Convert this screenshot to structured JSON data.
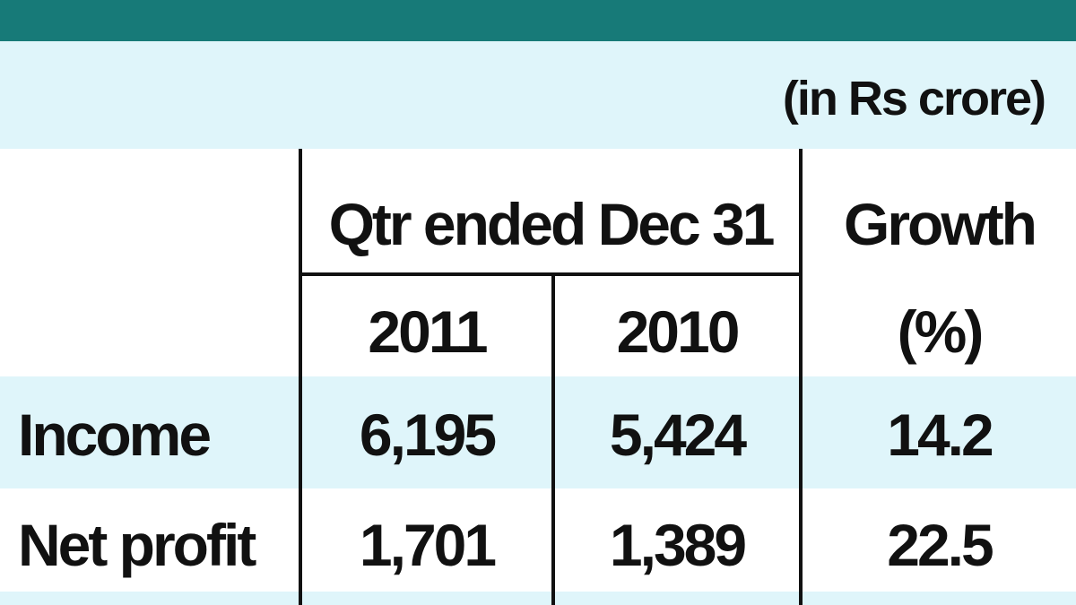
{
  "unit_note": "(in Rs crore)",
  "table": {
    "header": {
      "group": "Qtr ended Dec 31",
      "growth": "Growth",
      "years": [
        "2011",
        "2010"
      ],
      "growth_unit": "(%)"
    },
    "rows": [
      [
        "Income",
        "6,195",
        "5,424",
        "14.2"
      ],
      [
        "Net profit",
        "1,701",
        "1,389",
        "22.5"
      ]
    ]
  }
}
